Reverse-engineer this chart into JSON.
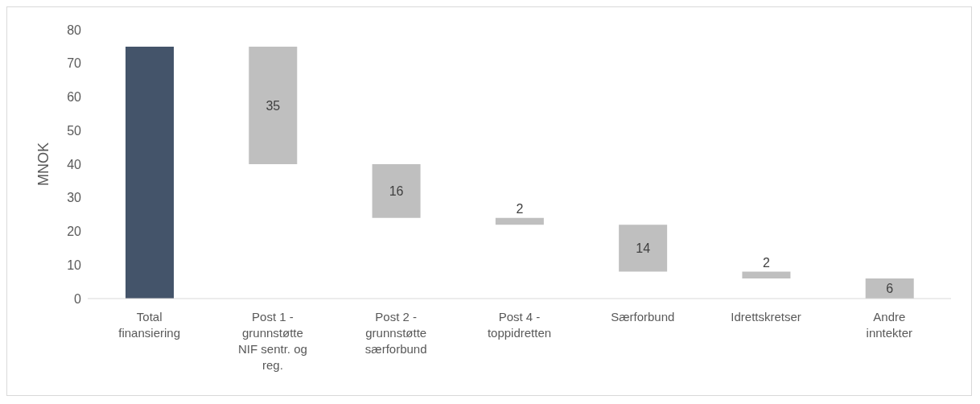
{
  "chart_data": {
    "type": "bar",
    "ylabel": "MNOK",
    "categories": [
      "Total finansiering",
      "Post 1 - grunnstøtte NIF sentr. og reg.",
      "Post 2 - grunnstøtte særforbund",
      "Post 4 - toppidretten",
      "Særforbund",
      "Idrettskretser",
      "Andre inntekter"
    ],
    "values": [
      75,
      35,
      16,
      2,
      14,
      2,
      6
    ],
    "base": [
      0,
      40,
      24,
      22,
      8,
      6,
      0
    ],
    "colors": [
      "#44546a",
      "#bfbfbf",
      "#bfbfbf",
      "#bfbfbf",
      "#bfbfbf",
      "#bfbfbf",
      "#bfbfbf"
    ],
    "value_labels": [
      null,
      "35",
      "16",
      "2",
      "14",
      "2",
      "6"
    ],
    "ylim": [
      0,
      80
    ],
    "yticks": [
      0,
      10,
      20,
      30,
      40,
      50,
      60,
      70,
      80
    ]
  }
}
